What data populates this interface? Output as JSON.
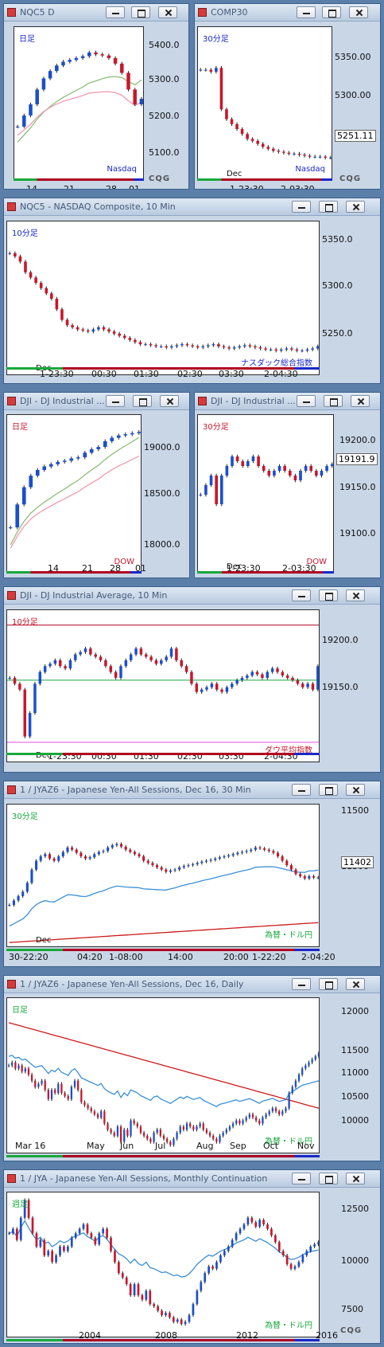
{
  "colors": {
    "up": "#1a4fcb",
    "down": "#c8172b",
    "ma_short": "#8dbf7a",
    "ma_mid": "#f29ab0",
    "ma_long": "#3b8fd6",
    "ma_longest": "#cc1a1a",
    "level_green": "#17a83a",
    "level_red": "#b00020",
    "level_pink": "#e84fe0",
    "level_blue": "#1a27c8"
  },
  "icons": [
    "window-menu-icon",
    "minimize-icon",
    "maximize-icon",
    "close-icon",
    "cqg-logo"
  ],
  "windows": [
    {
      "title": "NQC5 D",
      "period": "日足",
      "legend": "Nasdaq",
      "period_color": "#1a27c8",
      "legend_color": "#1a27c8",
      "y_labels": [
        "5400.0",
        "5300.0",
        "5200.0",
        "5100.0"
      ],
      "x_labels": [
        "14",
        "21",
        "28",
        "01"
      ],
      "last_value": "",
      "brand": "CQG"
    },
    {
      "title": "COMP30",
      "period": "30分足",
      "legend": "Nasdaq",
      "period_color": "#1a27c8",
      "legend_color": "#1a27c8",
      "y_labels": [
        "5350.00",
        "5300.00"
      ],
      "x_labels": [
        "1-23:30",
        "2-03:30"
      ],
      "inline_label": "Dec",
      "last_value": "5251.11",
      "brand": "CQG"
    },
    {
      "title": "NQC5 - NASDAQ Composite, 10 Min",
      "period": "10分足",
      "legend": "ナスダック総合指数",
      "period_color": "#1a27c8",
      "legend_color": "#1a27c8",
      "y_labels": [
        "5350.0",
        "5300.0",
        "5250.0"
      ],
      "x_labels": [
        "1-23:30",
        "00:30",
        "01:30",
        "02:30",
        "03:30",
        "2-04:30"
      ],
      "inline_label": "Dec",
      "last_value": ""
    },
    {
      "title": "DJI - DJ Industrial ...",
      "period": "日足",
      "legend": "DOW",
      "period_color": "#c8172b",
      "legend_color": "#c8172b",
      "y_labels": [
        "19000.0",
        "18500.0",
        "18000.0"
      ],
      "x_labels": [
        "14",
        "21",
        "28",
        "01"
      ],
      "last_value": ""
    },
    {
      "title": "DJI - DJ Industrial ...",
      "period": "30分足",
      "legend": "DOW",
      "period_color": "#c8172b",
      "legend_color": "#c8172b",
      "y_labels": [
        "19200.0",
        "19150.0",
        "19100.0"
      ],
      "x_labels": [
        "1-23:30",
        "2-03:30"
      ],
      "inline_label": "Dec",
      "last_value": "19191.9"
    },
    {
      "title": "DJI - DJ Industrial Average, 10 Min",
      "period": "10分足",
      "legend": "ダウ平均指数",
      "period_color": "#c8172b",
      "legend_color": "#c8172b",
      "y_labels": [
        "19200.0",
        "19150.0"
      ],
      "x_labels": [
        "1-23:30",
        "00:30",
        "01:30",
        "02:30",
        "03:30",
        "2-04:30"
      ],
      "inline_label": "Dec",
      "last_value": ""
    },
    {
      "title": "1 / JYAZ6 - Japanese Yen-All Sessions, Dec 16, 30 Min",
      "period": "30分足",
      "legend": "為替・ドル円",
      "period_color": "#17a83a",
      "legend_color": "#17a83a",
      "y_labels": [
        "11500",
        "11300"
      ],
      "x_labels": [
        "30-22:20",
        "04:20",
        "1-08:00",
        "14:00",
        "20:00",
        "1-22:20",
        "2-04:20"
      ],
      "inline_label": "Dec",
      "last_value": "11402"
    },
    {
      "title": "1 / JYAZ6 - Japanese Yen-All Sessions, Dec 16, Daily",
      "period": "日足",
      "legend": "為替・ドル円",
      "period_color": "#17a83a",
      "legend_color": "#17a83a",
      "y_labels": [
        "12000",
        "11500",
        "11000",
        "10500",
        "10000"
      ],
      "x_labels": [
        "Mar 16",
        "May",
        "Jun",
        "Jul",
        "Aug",
        "Sep",
        "Oct",
        "Nov"
      ],
      "last_value": ""
    },
    {
      "title": "1 / JYA - Japanese Yen-All Sessions, Monthly Continuation",
      "period": "週足",
      "legend": "為替・ドル円",
      "period_color": "#17a83a",
      "legend_color": "#17a83a",
      "y_labels": [
        "12500",
        "10000",
        "7500"
      ],
      "x_labels": [
        "2004",
        "2008",
        "2012",
        "2016"
      ],
      "last_value": "",
      "brand": "CQG"
    }
  ],
  "chart_data": [
    {
      "type": "candlestick",
      "title": "NQC5 D",
      "ylim": [
        5060,
        5460
      ],
      "start": 5200,
      "end": 5275,
      "n": 20,
      "path": [
        5200,
        5230,
        5260,
        5300,
        5330,
        5350,
        5365,
        5375,
        5380,
        5385,
        5390,
        5400,
        5395,
        5392,
        5385,
        5370,
        5345,
        5300,
        5260,
        5275
      ],
      "ma": [
        {
          "color_key": "ma_short",
          "from": 5130,
          "to": 5360
        },
        {
          "color_key": "ma_mid",
          "from": 5160,
          "to": 5260
        }
      ]
    },
    {
      "type": "candlestick",
      "title": "COMP30",
      "ylim": [
        5230,
        5380
      ],
      "start": 5340,
      "end": 5251.11,
      "n": 26,
      "path": [
        5340,
        5340,
        5338,
        5342,
        5300,
        5290,
        5285,
        5280,
        5275,
        5270,
        5268,
        5265,
        5262,
        5260,
        5258,
        5257,
        5256,
        5255,
        5255,
        5254,
        5253,
        5252,
        5252,
        5252,
        5251,
        5251.11
      ]
    },
    {
      "type": "candlestick",
      "title": "NASDAQ Composite 10 Min",
      "ylim": [
        5225,
        5365
      ],
      "start": 5338,
      "end": 5250,
      "n": 60,
      "path": [
        5338,
        5335,
        5330,
        5320,
        5315,
        5310,
        5305,
        5300,
        5295,
        5285,
        5275,
        5270,
        5268,
        5266,
        5265,
        5264,
        5266,
        5268,
        5266,
        5264,
        5262,
        5260,
        5258,
        5256,
        5254,
        5252,
        5252,
        5251,
        5250,
        5250,
        5249,
        5250,
        5251,
        5252,
        5251,
        5250,
        5249,
        5250,
        5251,
        5252,
        5250,
        5249,
        5248,
        5249,
        5250,
        5251,
        5250,
        5249,
        5248,
        5247,
        5247,
        5246,
        5247,
        5248,
        5247,
        5246,
        5246,
        5247,
        5248,
        5250
      ]
    },
    {
      "type": "candlestick",
      "title": "DJI D",
      "ylim": [
        17920,
        19250
      ],
      "start": 18300,
      "end": 19130,
      "n": 20,
      "path": [
        18300,
        18500,
        18650,
        18750,
        18800,
        18830,
        18850,
        18870,
        18880,
        18900,
        18910,
        18950,
        18980,
        19000,
        19050,
        19080,
        19100,
        19110,
        19120,
        19130
      ],
      "ma": [
        {
          "color_key": "ma_short",
          "from": 18050,
          "to": 19050
        },
        {
          "color_key": "ma_mid",
          "from": 18000,
          "to": 18780
        }
      ]
    },
    {
      "type": "candlestick",
      "title": "DJI 30 Min",
      "ylim": [
        19080,
        19240
      ],
      "start": 19160,
      "end": 19191.9,
      "n": 26,
      "path": [
        19160,
        19170,
        19180,
        19150,
        19180,
        19190,
        19200,
        19195,
        19190,
        19195,
        19200,
        19190,
        19185,
        19180,
        19185,
        19190,
        19185,
        19180,
        19175,
        19185,
        19190,
        19185,
        19180,
        19185,
        19190,
        19191.9
      ]
    },
    {
      "type": "candlestick",
      "title": "DJ Industrial Average 10 Min",
      "ylim": [
        19110,
        19235
      ],
      "start": 19180,
      "end": 19190,
      "n": 62,
      "path": [
        19180,
        19175,
        19170,
        19130,
        19150,
        19175,
        19185,
        19190,
        19192,
        19195,
        19190,
        19188,
        19195,
        19200,
        19202,
        19205,
        19200,
        19198,
        19195,
        19190,
        19185,
        19180,
        19190,
        19195,
        19200,
        19205,
        19200,
        19198,
        19195,
        19192,
        19195,
        19198,
        19205,
        19195,
        19190,
        19185,
        19175,
        19168,
        19170,
        19172,
        19175,
        19170,
        19168,
        19172,
        19175,
        19178,
        19180,
        19182,
        19185,
        19183,
        19180,
        19185,
        19188,
        19185,
        19182,
        19180,
        19178,
        19175,
        19172,
        19175,
        19170,
        19190
      ],
      "levels": [
        {
          "color_key": "level_red",
          "y": 19225
        },
        {
          "color_key": "level_green",
          "y": 19178
        },
        {
          "color_key": "level_pink",
          "y": 19125
        }
      ]
    },
    {
      "type": "candlestick",
      "title": "JYAZ6 30 Min",
      "ylim": [
        11250,
        11560
      ],
      "start": 11340,
      "end": 11402,
      "n": 70,
      "path": [
        11340,
        11350,
        11360,
        11370,
        11390,
        11420,
        11440,
        11450,
        11455,
        11445,
        11440,
        11450,
        11460,
        11470,
        11465,
        11458,
        11450,
        11445,
        11448,
        11455,
        11460,
        11462,
        11470,
        11475,
        11478,
        11472,
        11465,
        11460,
        11455,
        11450,
        11440,
        11435,
        11430,
        11425,
        11420,
        11415,
        11418,
        11420,
        11425,
        11428,
        11430,
        11432,
        11435,
        11438,
        11440,
        11442,
        11445,
        11448,
        11450,
        11452,
        11455,
        11458,
        11460,
        11462,
        11465,
        11470,
        11468,
        11465,
        11462,
        11458,
        11450,
        11440,
        11430,
        11420,
        11410,
        11405,
        11400,
        11405,
        11402,
        11402
      ],
      "ma": [
        {
          "color_key": "ma_long",
          "from": 11260,
          "to": 11430
        },
        {
          "color_key": "ma_longest",
          "from": 11255,
          "to": 11300
        }
      ]
    },
    {
      "type": "candlestick",
      "title": "JYAZ6 Daily",
      "ylim": [
        9850,
        12300
      ],
      "start": 11250,
      "end": 11450,
      "n": 95,
      "path": [
        11250,
        11300,
        11200,
        11250,
        11150,
        11200,
        11100,
        11000,
        10900,
        10950,
        11000,
        10850,
        10700,
        10850,
        10800,
        10950,
        10800,
        10750,
        10700,
        10900,
        11000,
        10850,
        10650,
        10600,
        10550,
        10500,
        10450,
        10400,
        10500,
        10300,
        10200,
        10150,
        10100,
        10250,
        10000,
        10200,
        10100,
        10350,
        10300,
        10250,
        10150,
        10100,
        10050,
        10000,
        10150,
        10200,
        10100,
        10050,
        10000,
        9950,
        10050,
        10150,
        10250,
        10200,
        10300,
        10250,
        10200,
        10250,
        10300,
        10200,
        10150,
        10100,
        10050,
        10000,
        10100,
        10150,
        10200,
        10250,
        10300,
        10350,
        10300,
        10350,
        10400,
        10450,
        10400,
        10350,
        10300,
        10400,
        10450,
        10500,
        10550,
        10500,
        10450,
        10500,
        10550,
        10800,
        10900,
        11000,
        11100,
        11200,
        11250,
        11300,
        11350,
        11400,
        11450
      ],
      "ma": [
        {
          "color_key": "ma_longest",
          "from": 11950,
          "to": 10550
        },
        {
          "color_key": "ma_long",
          "from": 11500,
          "to": 10700
        }
      ]
    },
    {
      "type": "candlestick",
      "title": "JYA Monthly Continuation",
      "ylim": [
        7200,
        13500
      ],
      "start": 11800,
      "end": 11400,
      "n": 80,
      "path": [
        11800,
        12000,
        11500,
        12500,
        13300,
        12500,
        11800,
        11200,
        11500,
        10800,
        11000,
        10500,
        10800,
        11200,
        11000,
        11200,
        11600,
        11800,
        12000,
        12200,
        11800,
        11600,
        11300,
        11800,
        12000,
        11600,
        11000,
        10500,
        10000,
        9800,
        9500,
        9000,
        9500,
        9000,
        8800,
        9200,
        8600,
        8500,
        8300,
        8100,
        8200,
        8000,
        7800,
        7900,
        7700,
        7800,
        8100,
        8600,
        9200,
        9600,
        10000,
        10300,
        10200,
        10500,
        10800,
        11000,
        11200,
        11500,
        11800,
        12000,
        12200,
        12500,
        12300,
        12100,
        12400,
        12200,
        12000,
        11700,
        11400,
        11000,
        10800,
        10400,
        10200,
        10300,
        10500,
        10800,
        11000,
        11200,
        11300,
        11400
      ],
      "ma": [
        {
          "color_key": "ma_long",
          "from": 11800,
          "to": 10800
        }
      ]
    }
  ]
}
